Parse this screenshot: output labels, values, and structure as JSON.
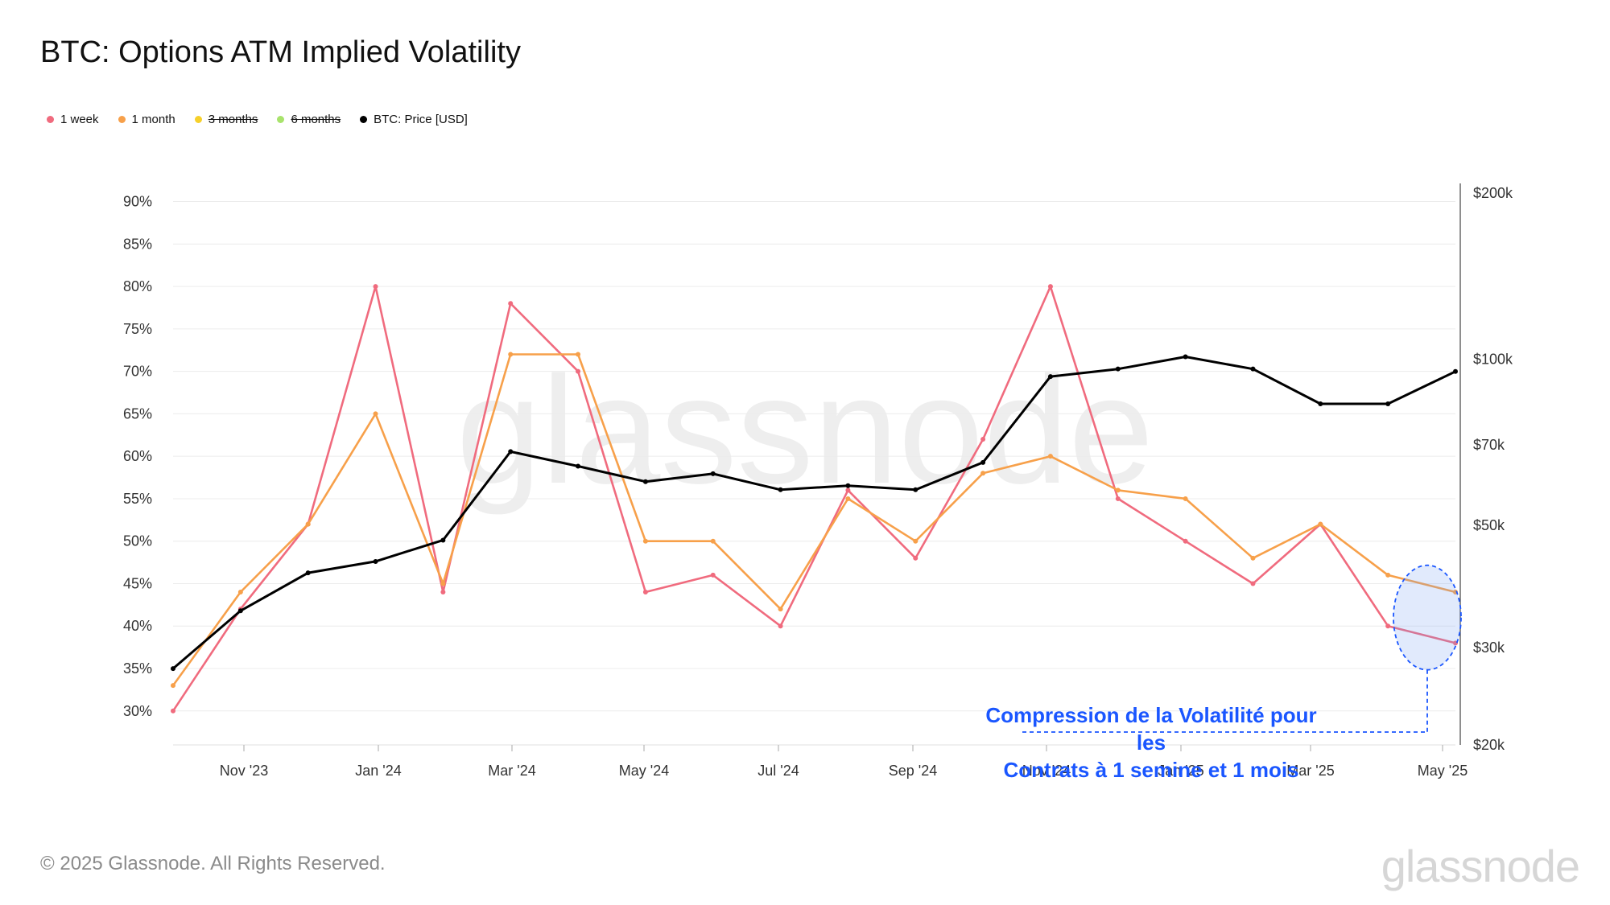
{
  "header": {
    "title": "BTC: Options ATM Implied Volatility"
  },
  "legend": [
    {
      "label": "1 week",
      "color": "#f06b7e",
      "active": true
    },
    {
      "label": "1 month",
      "color": "#f7a04a",
      "active": true
    },
    {
      "label": "3 months",
      "color": "#f6d02a",
      "active": false
    },
    {
      "label": "6 months",
      "color": "#a8e36c",
      "active": false
    },
    {
      "label": "BTC: Price [USD]",
      "color": "#000000",
      "active": true
    }
  ],
  "annotation": {
    "line1": "Compression de la Volatilité pour les",
    "line2": "Contrats à 1 semine et 1 mois"
  },
  "footer": {
    "copyright": "© 2025 Glassnode. All Rights Reserved.",
    "brand": "glassnode"
  },
  "chart_data": {
    "type": "line",
    "title": "BTC: Options ATM Implied Volatility",
    "x_ticks": [
      "Nov '23",
      "Jan '24",
      "Mar '24",
      "May '24",
      "Jul '24",
      "Sep '24",
      "Nov '24",
      "Jan '25",
      "Mar '25",
      "May '25"
    ],
    "x": [
      "Oct '23",
      "Nov '23",
      "Dec '23",
      "Jan '24",
      "Feb '24",
      "Mar '24",
      "Apr '24",
      "May '24",
      "Jun '24",
      "Jul '24",
      "Aug '24",
      "Sep '24",
      "Oct '24",
      "Nov '24",
      "Dec '24",
      "Jan '25",
      "Feb '25",
      "Mar '25",
      "Apr '25",
      "May '25"
    ],
    "y_left": {
      "label": "Implied Volatility",
      "ticks": [
        "30%",
        "35%",
        "40%",
        "45%",
        "50%",
        "55%",
        "60%",
        "65%",
        "70%",
        "75%",
        "80%",
        "85%",
        "90%"
      ],
      "range": [
        26,
        91
      ]
    },
    "y_right": {
      "label": "BTC: Price [USD]",
      "scale": "log",
      "ticks": [
        "$20k",
        "$30k",
        "$50k",
        "$70k",
        "$100k",
        "$200k"
      ],
      "tick_values": [
        20000,
        30000,
        50000,
        70000,
        100000,
        200000
      ],
      "range": [
        20000,
        200000
      ]
    },
    "grid": true,
    "series": [
      {
        "name": "1 week",
        "color": "#f06b7e",
        "axis": "left",
        "values": [
          30,
          42,
          52,
          80,
          44,
          78,
          70,
          44,
          46,
          40,
          56,
          48,
          62,
          80,
          55,
          50,
          45,
          52,
          40,
          38
        ]
      },
      {
        "name": "1 month",
        "color": "#f7a04a",
        "axis": "left",
        "values": [
          33,
          44,
          52,
          65,
          45,
          72,
          72,
          50,
          50,
          42,
          55,
          50,
          58,
          60,
          56,
          55,
          48,
          52,
          46,
          44
        ]
      },
      {
        "name": "BTC: Price [USD]",
        "color": "#000000",
        "axis": "right",
        "values": [
          27500,
          35000,
          41000,
          43000,
          47000,
          68000,
          64000,
          60000,
          62000,
          58000,
          59000,
          58000,
          65000,
          93000,
          96000,
          101000,
          96000,
          83000,
          83000,
          95000
        ]
      }
    ],
    "legend_position": "top-left"
  }
}
